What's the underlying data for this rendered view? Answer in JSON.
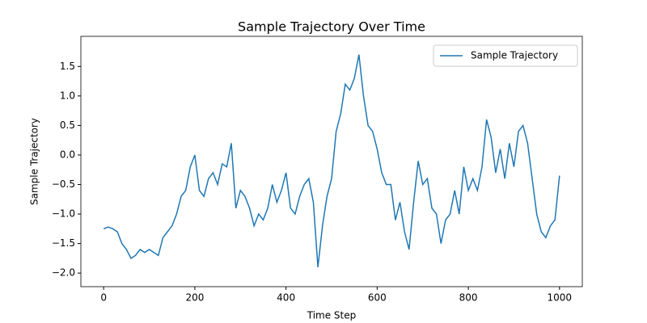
{
  "chart_data": {
    "type": "line",
    "title": "Sample Trajectory Over Time",
    "x_label": "Time Step",
    "y_label": "Sample Trajectory",
    "x": [
      0,
      10,
      20,
      30,
      40,
      50,
      60,
      70,
      80,
      90,
      100,
      110,
      120,
      130,
      140,
      150,
      160,
      170,
      180,
      190,
      200,
      210,
      220,
      230,
      240,
      250,
      260,
      270,
      280,
      290,
      300,
      310,
      320,
      330,
      340,
      350,
      360,
      370,
      380,
      390,
      400,
      410,
      420,
      430,
      440,
      450,
      460,
      470,
      480,
      490,
      500,
      510,
      520,
      530,
      540,
      550,
      560,
      570,
      580,
      590,
      600,
      610,
      620,
      630,
      640,
      650,
      660,
      670,
      680,
      690,
      700,
      710,
      720,
      730,
      740,
      750,
      760,
      770,
      780,
      790,
      800,
      810,
      820,
      830,
      840,
      850,
      860,
      870,
      880,
      890,
      900,
      910,
      920,
      930,
      940,
      950,
      960,
      970,
      980,
      990,
      1000
    ],
    "series": [
      {
        "name": "Sample Trajectory",
        "color": "#1f77b4",
        "values": [
          -1.25,
          -1.22,
          -1.25,
          -1.3,
          -1.5,
          -1.6,
          -1.75,
          -1.7,
          -1.6,
          -1.65,
          -1.6,
          -1.65,
          -1.7,
          -1.4,
          -1.3,
          -1.2,
          -1.0,
          -0.7,
          -0.6,
          -0.2,
          0.0,
          -0.6,
          -0.7,
          -0.4,
          -0.3,
          -0.5,
          -0.15,
          -0.2,
          0.2,
          -0.9,
          -0.6,
          -0.7,
          -0.9,
          -1.2,
          -1.0,
          -1.1,
          -0.9,
          -0.5,
          -0.8,
          -0.6,
          -0.3,
          -0.9,
          -1.0,
          -0.7,
          -0.5,
          -0.4,
          -0.8,
          -1.9,
          -1.2,
          -0.7,
          -0.4,
          0.4,
          0.7,
          1.2,
          1.1,
          1.3,
          1.7,
          1.0,
          0.5,
          0.4,
          0.1,
          -0.3,
          -0.5,
          -0.5,
          -1.1,
          -0.8,
          -1.3,
          -1.6,
          -0.8,
          -0.1,
          -0.5,
          -0.4,
          -0.9,
          -1.0,
          -1.5,
          -1.1,
          -1.0,
          -0.6,
          -1.0,
          -0.2,
          -0.6,
          -0.4,
          -0.6,
          -0.2,
          0.6,
          0.3,
          -0.3,
          0.1,
          -0.4,
          0.2,
          -0.2,
          0.4,
          0.5,
          0.2,
          -0.4,
          -1.0,
          -1.3,
          -1.4,
          -1.2,
          -1.1,
          -0.35
        ]
      }
    ],
    "xlim": [
      -50,
      1050
    ],
    "ylim": [
      -2.23,
      2.01
    ],
    "xticks": [
      0,
      200,
      400,
      600,
      800,
      1000
    ],
    "yticks": [
      {
        "value": -2.0,
        "label": "−2.0"
      },
      {
        "value": -1.5,
        "label": "−1.5"
      },
      {
        "value": -1.0,
        "label": "−1.0"
      },
      {
        "value": -0.5,
        "label": "−0.5"
      },
      {
        "value": 0.0,
        "label": "0.0"
      },
      0.5,
      {
        "value": 1.0,
        "label": "1.0"
      },
      1.5
    ],
    "grid": false,
    "legend": "upper right"
  }
}
